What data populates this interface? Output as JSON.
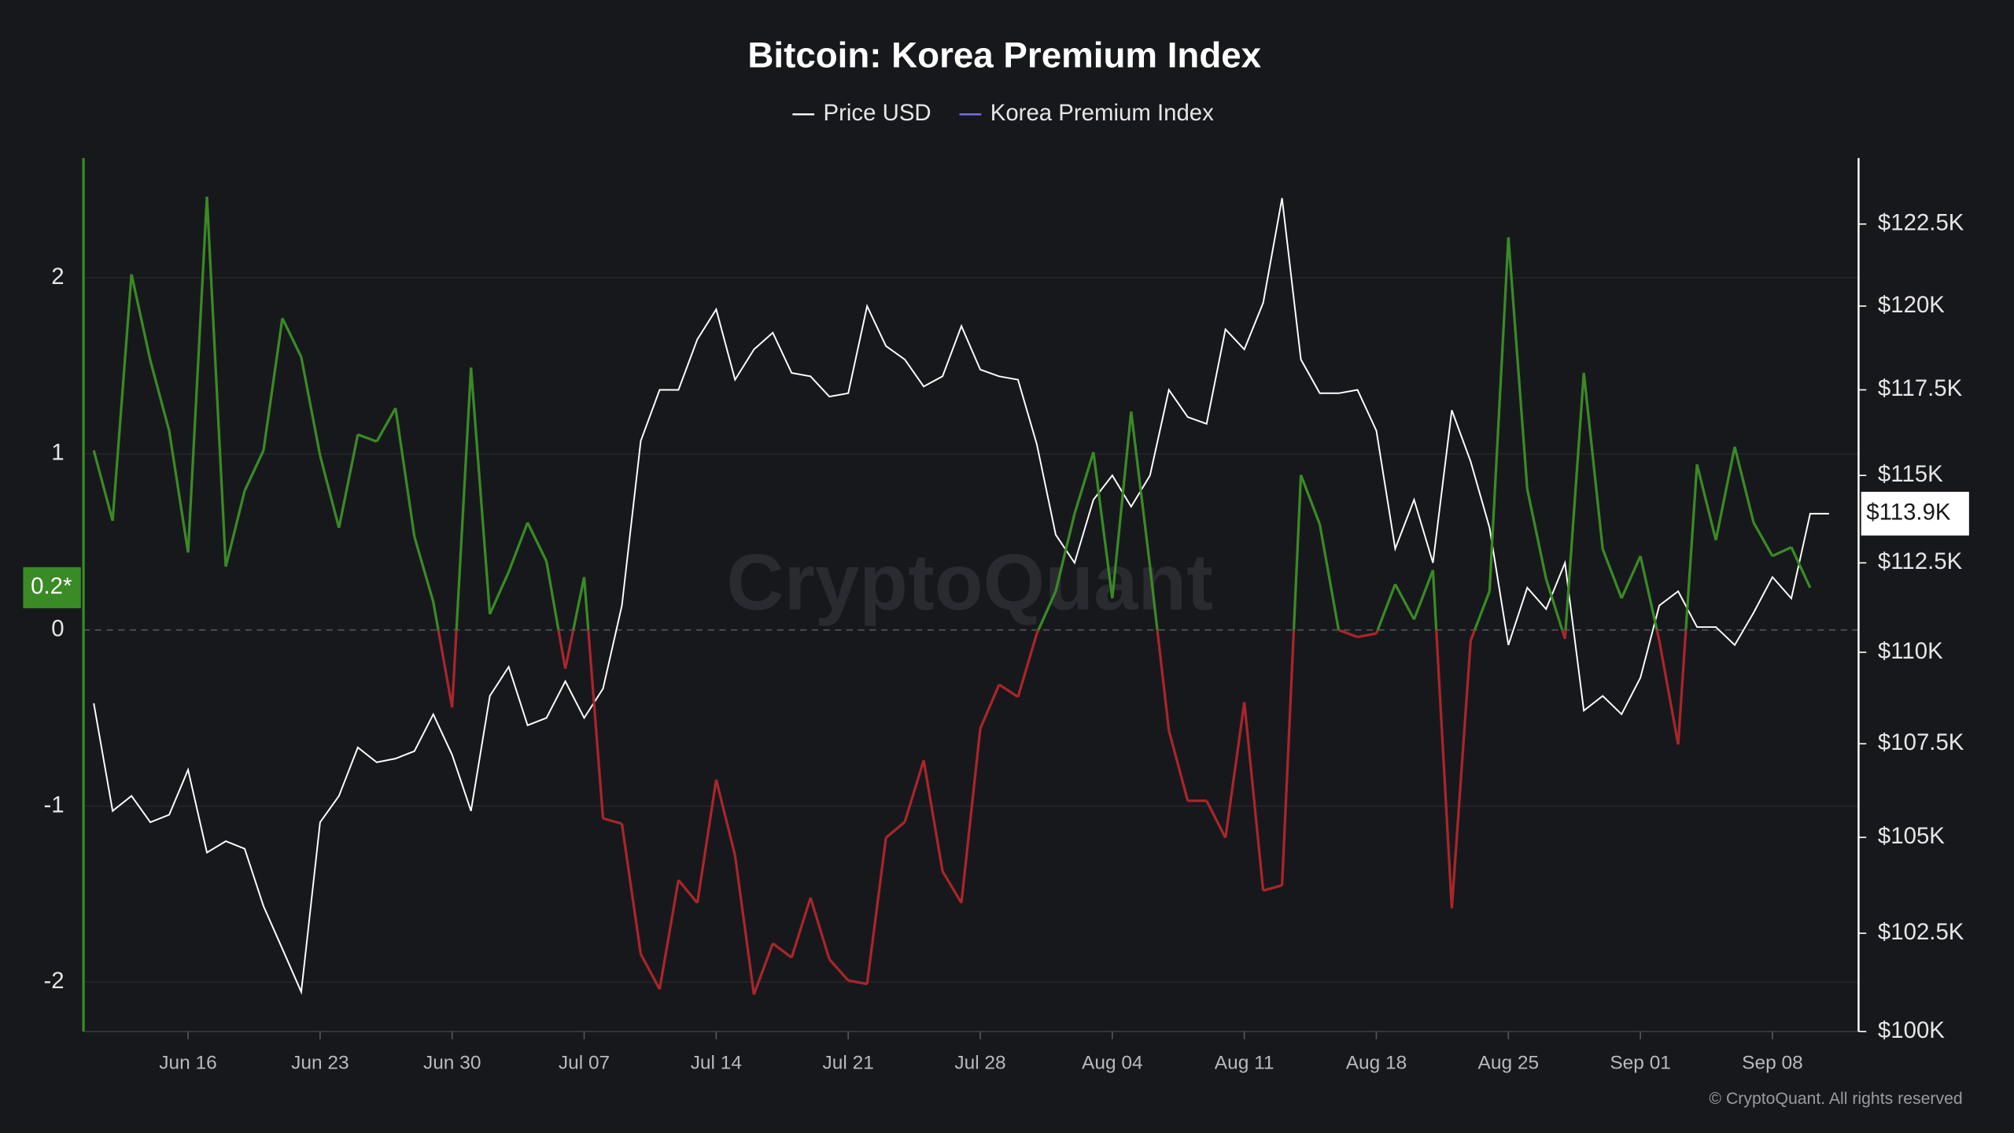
{
  "chart_data": {
    "type": "line",
    "title": "Bitcoin: Korea Premium Index",
    "watermark": "CryptoQuant",
    "credit": "© CryptoQuant. All rights reserved",
    "categories": [
      null,
      null,
      null,
      null,
      null,
      "Jun 16",
      null,
      null,
      null,
      null,
      null,
      null,
      "Jun 23",
      null,
      null,
      null,
      null,
      null,
      null,
      "Jun 30",
      null,
      null,
      null,
      null,
      null,
      null,
      "Jul 07",
      null,
      null,
      null,
      null,
      null,
      null,
      "Jul 14",
      null,
      null,
      null,
      null,
      null,
      null,
      "Jul 21",
      null,
      null,
      null,
      null,
      null,
      null,
      "Jul 28",
      null,
      null,
      null,
      null,
      null,
      null,
      "Aug 04",
      null,
      null,
      null,
      null,
      null,
      null,
      "Aug 11",
      null,
      null,
      null,
      null,
      null,
      null,
      "Aug 18",
      null,
      null,
      null,
      null,
      null,
      null,
      "Aug 25",
      null,
      null,
      null,
      null,
      null,
      null,
      "Sep 01",
      null,
      null,
      null,
      null,
      null,
      null,
      "Sep 08",
      null,
      null,
      null
    ],
    "series": [
      {
        "name": "Price USD",
        "color": "#ffffff",
        "axis": "y2",
        "last_label": "$113.9K",
        "values": [
          108600,
          105700,
          106100,
          105400,
          105600,
          106800,
          104600,
          104900,
          104700,
          103200,
          102100,
          101000,
          105400,
          106100,
          107400,
          107000,
          107100,
          107300,
          108300,
          107200,
          105700,
          108800,
          109600,
          108000,
          108200,
          109200,
          108200,
          109000,
          111300,
          116000,
          117500,
          117500,
          119000,
          119900,
          117800,
          118700,
          119200,
          118000,
          117900,
          117300,
          117400,
          120000,
          118800,
          118400,
          117600,
          117900,
          119400,
          118100,
          117900,
          117800,
          115900,
          113300,
          112500,
          114300,
          115000,
          114100,
          115000,
          117500,
          116700,
          116500,
          119300,
          118700,
          120100,
          123300,
          118400,
          117400,
          117400,
          117500,
          116300,
          112900,
          114300,
          112500,
          116900,
          115400,
          113500,
          110200,
          111800,
          111200,
          112500,
          108400,
          108800,
          108300,
          109300,
          111300,
          111700,
          110700,
          110700,
          110200,
          111100,
          112100,
          111500,
          113900,
          113900
        ]
      },
      {
        "name": "Korea Premium Index",
        "color": "#7b6ff0",
        "positive_color": "#3a8a25",
        "negative_color": "#a8262a",
        "last_label": "0.2*",
        "values": [
          1.02,
          0.62,
          2.02,
          1.53,
          1.13,
          0.44,
          2.46,
          0.36,
          0.79,
          1.02,
          1.77,
          1.55,
          0.99,
          0.58,
          1.11,
          1.07,
          1.26,
          0.53,
          0.16,
          -0.44,
          1.49,
          0.09,
          0.33,
          0.61,
          0.39,
          -0.22,
          0.3,
          -1.07,
          -1.1,
          -1.84,
          -2.04,
          -1.42,
          -1.55,
          -0.85,
          -1.28,
          -2.07,
          -1.78,
          -1.86,
          -1.52,
          -1.87,
          -1.99,
          -2.01,
          -1.18,
          -1.09,
          -0.74,
          -1.37,
          -1.55,
          -0.56,
          -0.31,
          -0.38,
          -0.02,
          0.22,
          0.66,
          1.01,
          0.18,
          1.24,
          0.36,
          -0.57,
          -0.97,
          -0.97,
          -1.18,
          -0.41,
          -1.48,
          -1.45,
          0.88,
          0.6,
          0.0,
          -0.04,
          -0.02,
          0.26,
          0.06,
          0.34,
          -1.58,
          -0.06,
          0.22,
          2.23,
          0.8,
          0.29,
          -0.05,
          1.46,
          0.46,
          0.18,
          0.42,
          -0.06,
          -0.65,
          0.94,
          0.51,
          1.04,
          0.61,
          0.42,
          0.47,
          0.24,
          null
        ]
      }
    ],
    "ylim": [
      -2.28,
      2.68
    ],
    "yticks": [
      2,
      1,
      0,
      -1,
      -2
    ],
    "y2lim": [
      100000,
      124550
    ],
    "y2log": true,
    "y2ticks": [
      {
        "value": 100000,
        "label": "$100K"
      },
      {
        "value": 102500,
        "label": "$102.5K"
      },
      {
        "value": 105000,
        "label": "$105K"
      },
      {
        "value": 107500,
        "label": "$107.5K"
      },
      {
        "value": 110000,
        "label": "$110K"
      },
      {
        "value": 112500,
        "label": "$112.5K"
      },
      {
        "value": 115000,
        "label": "$115K"
      },
      {
        "value": 117500,
        "label": "$117.5K"
      },
      {
        "value": 120000,
        "label": "$120K"
      },
      {
        "value": 122500,
        "label": "$122.5K"
      }
    ],
    "grid": true
  }
}
